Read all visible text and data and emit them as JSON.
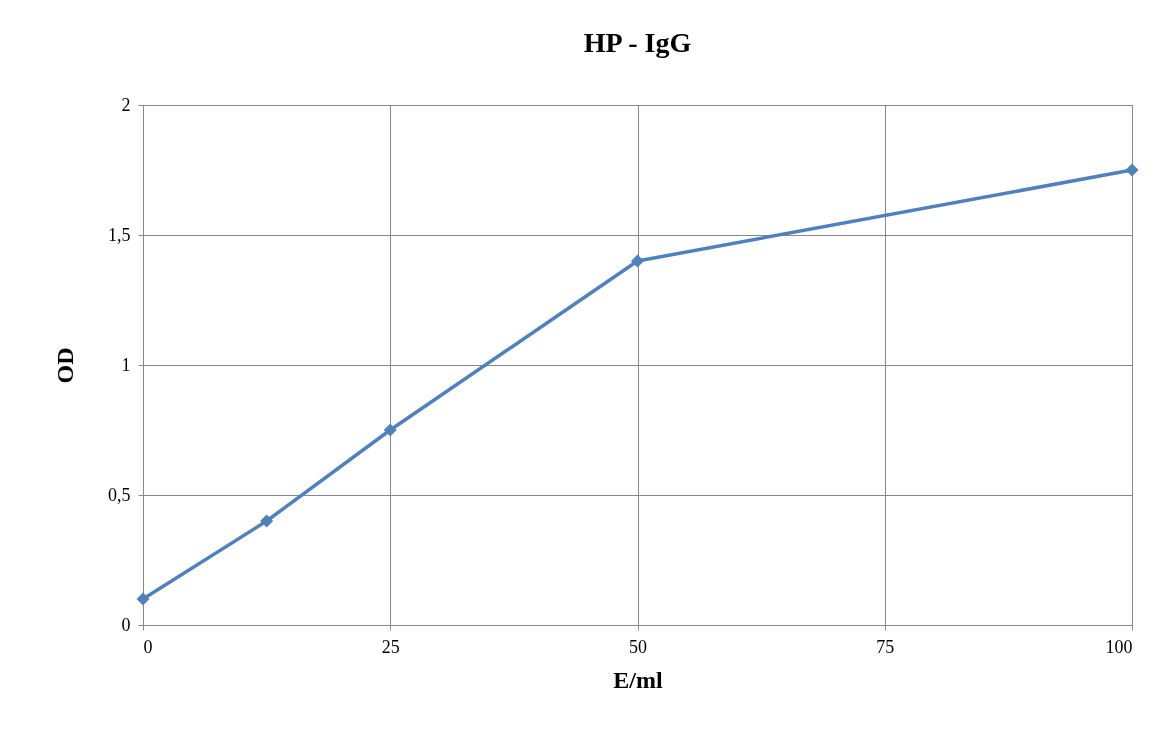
{
  "chart_data": {
    "type": "line",
    "title": "HP - IgG",
    "xlabel": "E/ml",
    "ylabel": "OD",
    "x": [
      0,
      12.5,
      25,
      50,
      100
    ],
    "series": [
      {
        "color": "#4f81bd",
        "values": [
          0.1,
          0.4,
          0.75,
          1.4,
          1.75
        ]
      }
    ],
    "xlim": [
      0,
      100
    ],
    "xticks": [
      0,
      25,
      50,
      75,
      100
    ],
    "ylim": [
      0,
      2
    ],
    "yticks": [
      0,
      {
        "value": 0.5,
        "label": "0,5"
      },
      1,
      {
        "value": 1.5,
        "label": "1,5"
      },
      2
    ],
    "grid": true,
    "marker": "diamond",
    "line_style": "solid"
  }
}
